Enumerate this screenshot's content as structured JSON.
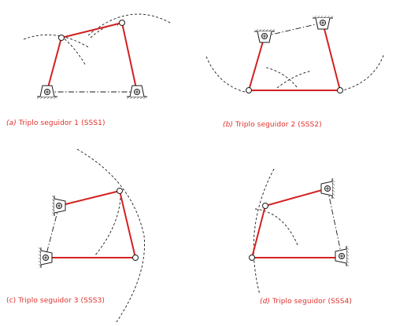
{
  "figure": {
    "panels": [
      {
        "id": "a",
        "label": "(a)",
        "caption": "Triplo seguidor 1 (SSS1)"
      },
      {
        "id": "b",
        "label": "(b)",
        "caption": "Triplo seguidor 2 (SSS2)"
      },
      {
        "id": "c",
        "label": "(c)",
        "caption": "Triplo seguidor  3 (SSS3)"
      },
      {
        "id": "d",
        "label": "(d)",
        "caption": "Triplo seguidor (SSS4)"
      }
    ]
  },
  "colors": {
    "link": "#d42020",
    "ink": "#1a1a1a",
    "caption": "#e0302a"
  }
}
